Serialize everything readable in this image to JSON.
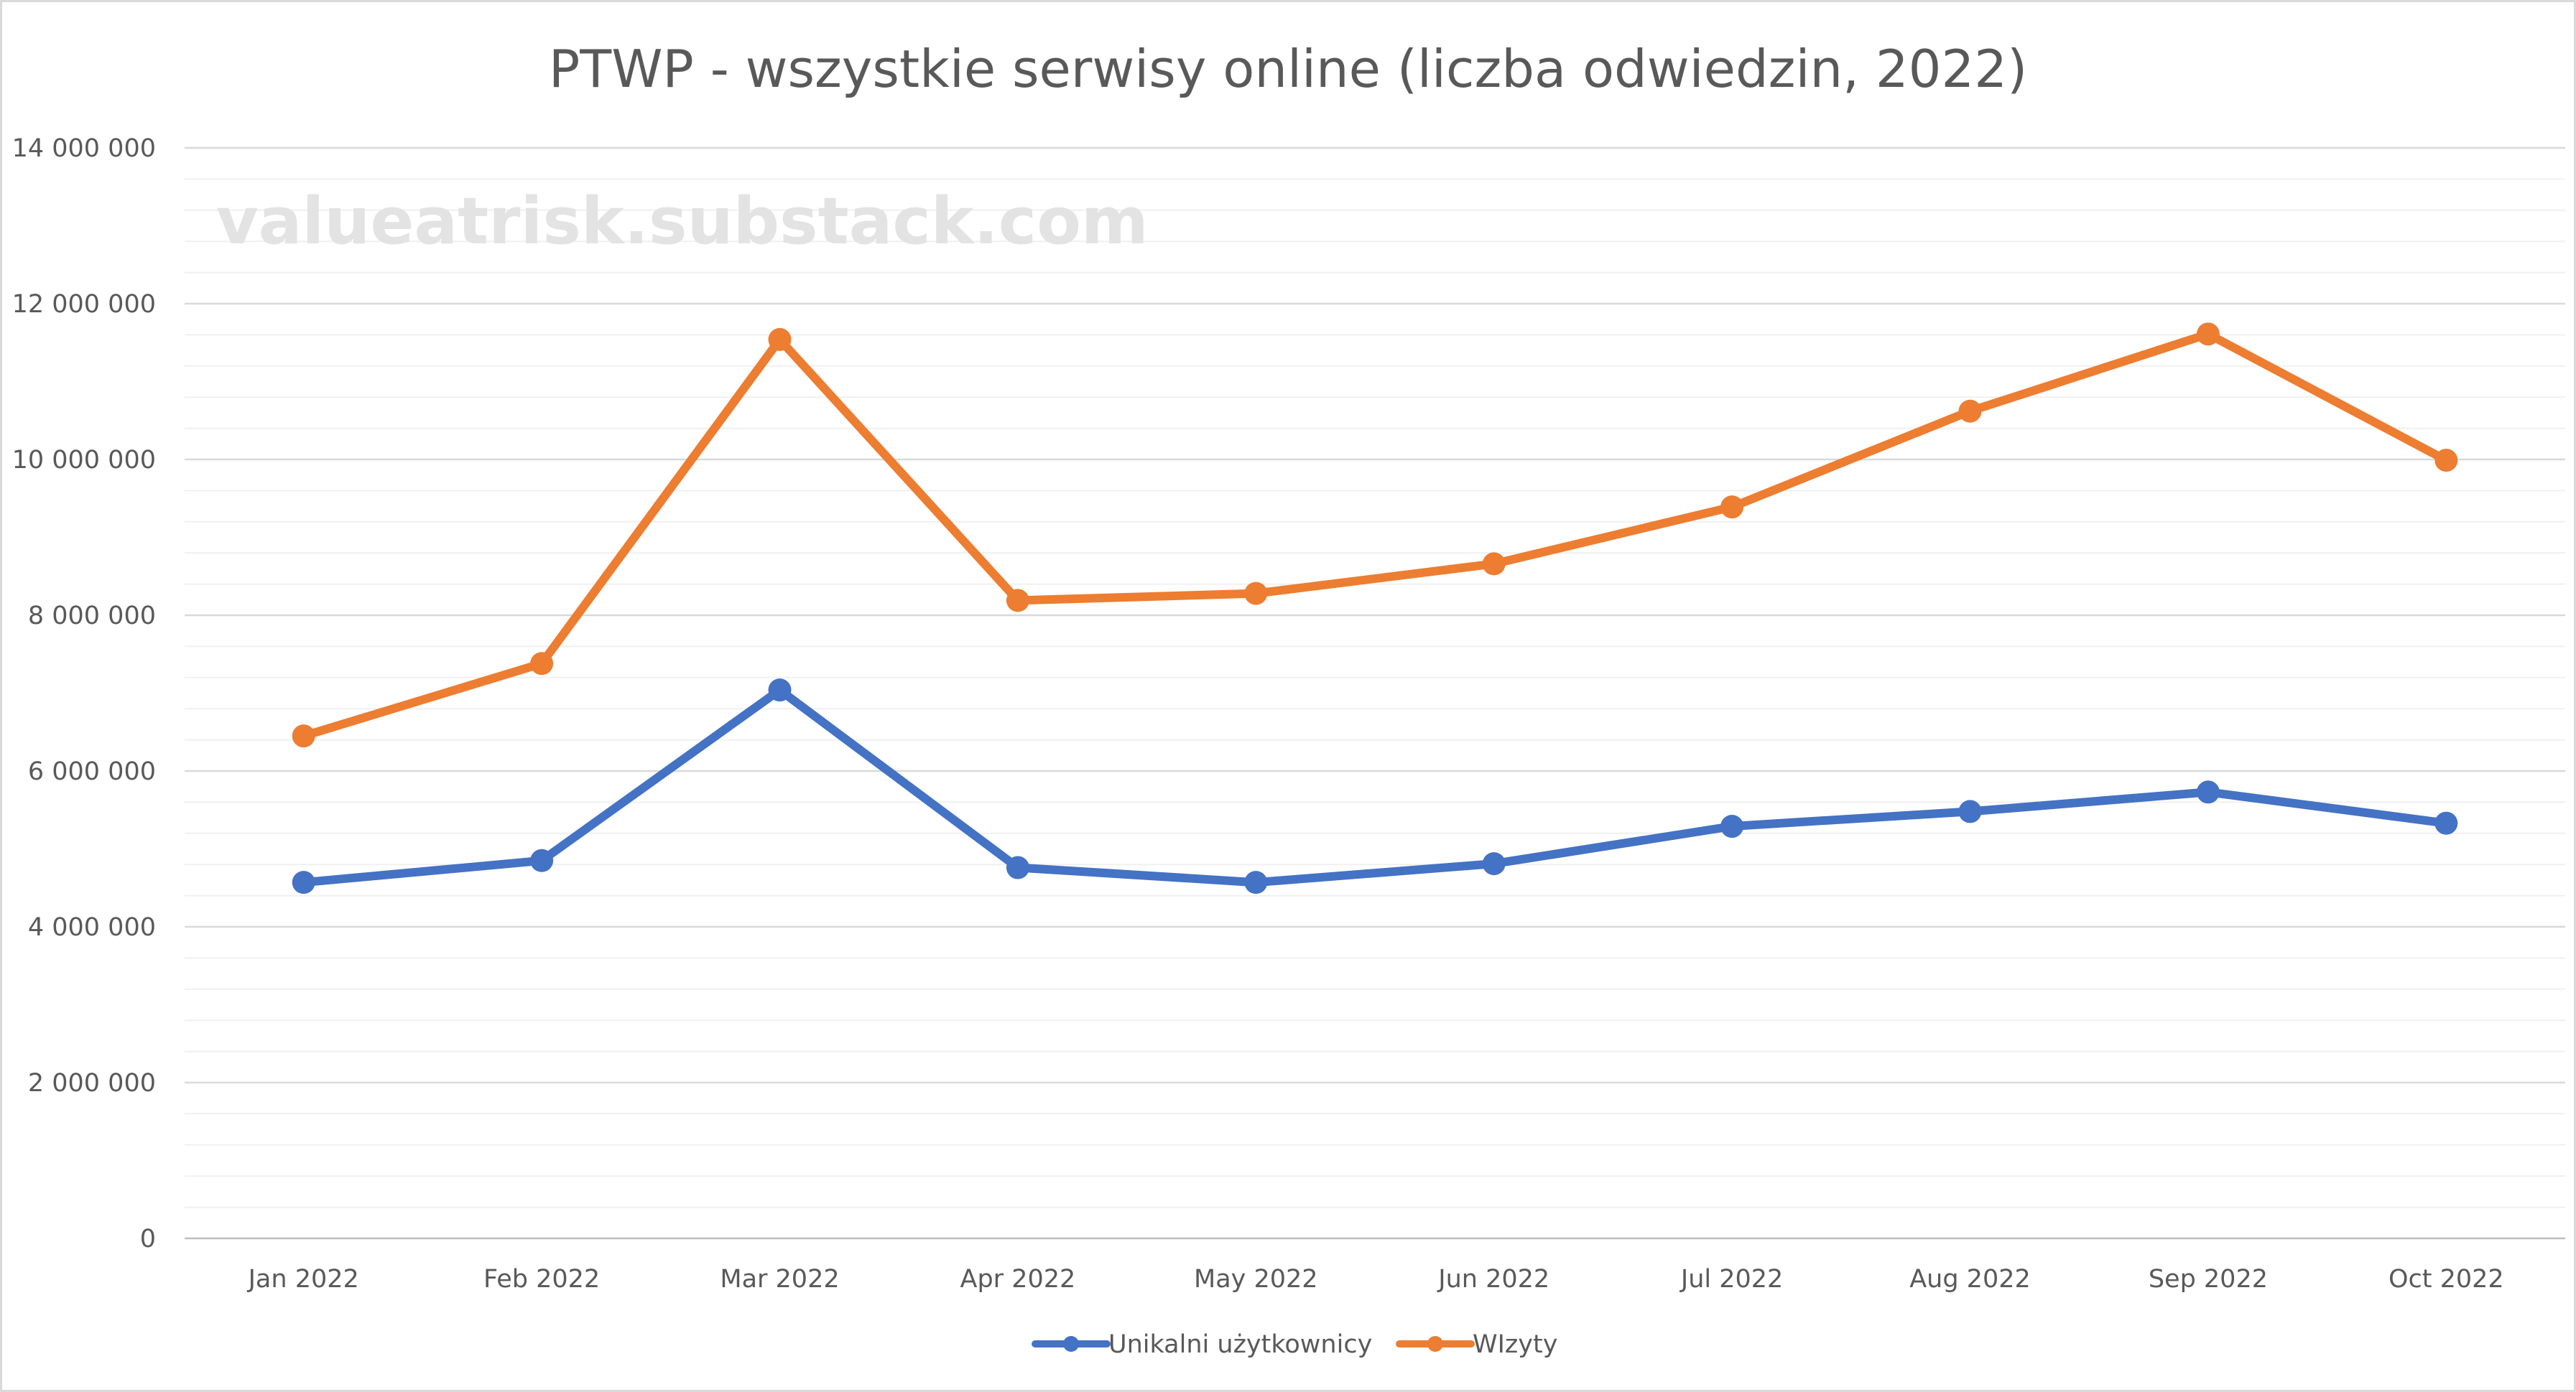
{
  "watermark": "valueatrisk.substack.com",
  "chart_data": {
    "type": "line",
    "title": "PTWP - wszystkie serwisy online (liczba odwiedzin, 2022)",
    "xlabel": "",
    "ylabel": "",
    "categories": [
      "Jan 2022",
      "Feb 2022",
      "Mar 2022",
      "Apr 2022",
      "May 2022",
      "Jun 2022",
      "Jul 2022",
      "Aug 2022",
      "Sep 2022",
      "Oct 2022"
    ],
    "ylim": [
      0,
      14000000
    ],
    "y_tick_values": [
      0,
      2000000,
      4000000,
      6000000,
      8000000,
      10000000,
      12000000,
      14000000
    ],
    "y_tick_labels": [
      "0",
      "2 000 000",
      "4 000 000",
      "6 000 000",
      "8 000 000",
      "10 000 000",
      "12 000 000",
      "14 000 000"
    ],
    "minor_gridline_step": 400000,
    "grid": true,
    "legend_position": "bottom",
    "series": [
      {
        "name": "Unikalni użytkownicy",
        "color": "#4472c4",
        "values": [
          4570000,
          4850000,
          7040000,
          4760000,
          4570000,
          4810000,
          5290000,
          5480000,
          5730000,
          5330000
        ]
      },
      {
        "name": "WIzyty",
        "color": "#ed7d31",
        "values": [
          6450000,
          7380000,
          11540000,
          8190000,
          8280000,
          8660000,
          9390000,
          10620000,
          11610000,
          9990000
        ]
      }
    ]
  }
}
